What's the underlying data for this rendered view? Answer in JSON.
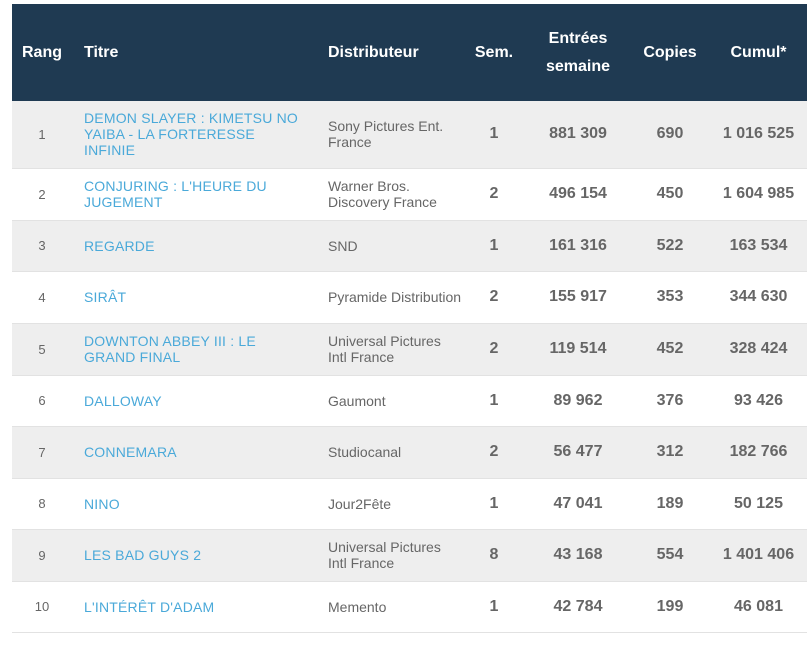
{
  "headers": {
    "rang": "Rang",
    "titre": "Titre",
    "distributeur": "Distributeur",
    "sem": "Sem.",
    "entrees_line1": "Entrées",
    "entrees_line2": "semaine",
    "copies": "Copies",
    "cumul": "Cumul*"
  },
  "colors": {
    "header_bg": "#1f3a52",
    "title_link": "#4aa9d9",
    "row_alt": "#eeeeee"
  },
  "rows": [
    {
      "rang": "1",
      "titre": "DEMON SLAYER : KIMETSU NO YAIBA - LA FORTERESSE INFINIE",
      "distributeur": "Sony Pictures Ent. France",
      "sem": "1",
      "entrees": "881 309",
      "copies": "690",
      "cumul": "1 016 525"
    },
    {
      "rang": "2",
      "titre": "CONJURING : L'HEURE DU JUGEMENT",
      "distributeur": "Warner Bros. Discovery France",
      "sem": "2",
      "entrees": "496 154",
      "copies": "450",
      "cumul": "1 604 985"
    },
    {
      "rang": "3",
      "titre": "REGARDE",
      "distributeur": "SND",
      "sem": "1",
      "entrees": "161 316",
      "copies": "522",
      "cumul": "163 534"
    },
    {
      "rang": "4",
      "titre": "SIRÂT",
      "distributeur": "Pyramide Distribution",
      "sem": "2",
      "entrees": "155 917",
      "copies": "353",
      "cumul": "344 630"
    },
    {
      "rang": "5",
      "titre": "DOWNTON ABBEY III : LE GRAND FINAL",
      "distributeur": "Universal Pictures Intl France",
      "sem": "2",
      "entrees": "119 514",
      "copies": "452",
      "cumul": "328 424"
    },
    {
      "rang": "6",
      "titre": "DALLOWAY",
      "distributeur": "Gaumont",
      "sem": "1",
      "entrees": "89 962",
      "copies": "376",
      "cumul": "93 426"
    },
    {
      "rang": "7",
      "titre": "CONNEMARA",
      "distributeur": "Studiocanal",
      "sem": "2",
      "entrees": "56 477",
      "copies": "312",
      "cumul": "182 766"
    },
    {
      "rang": "8",
      "titre": "NINO",
      "distributeur": "Jour2Fête",
      "sem": "1",
      "entrees": "47 041",
      "copies": "189",
      "cumul": "50 125"
    },
    {
      "rang": "9",
      "titre": "LES BAD GUYS 2",
      "distributeur": "Universal Pictures Intl France",
      "sem": "8",
      "entrees": "43 168",
      "copies": "554",
      "cumul": "1 401 406"
    },
    {
      "rang": "10",
      "titre": "L'INTÉRÊT D'ADAM",
      "distributeur": "Memento",
      "sem": "1",
      "entrees": "42 784",
      "copies": "199",
      "cumul": "46 081"
    }
  ]
}
